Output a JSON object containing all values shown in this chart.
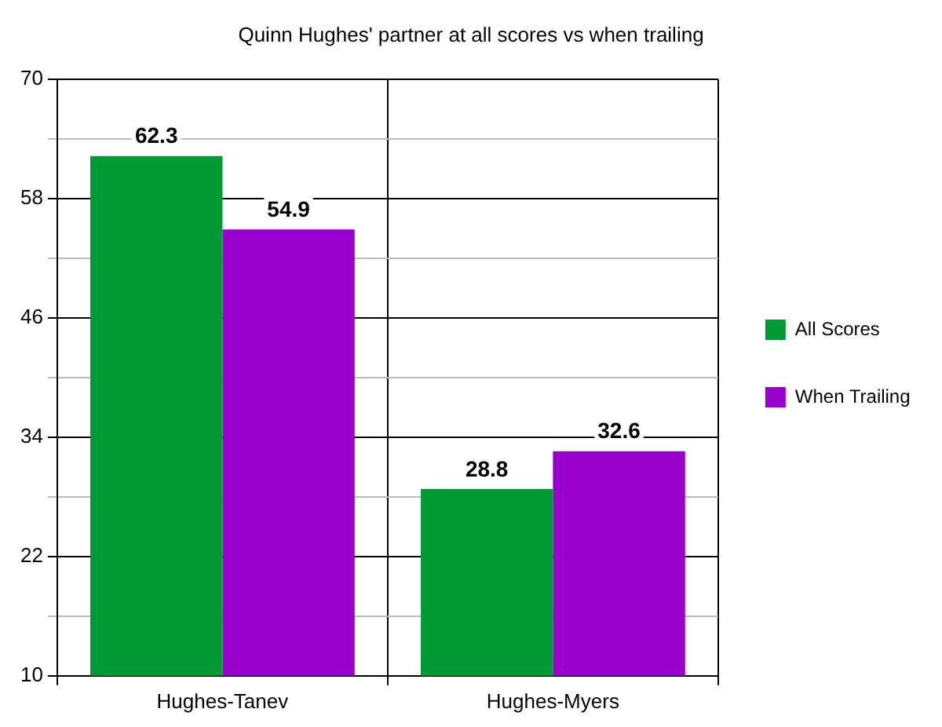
{
  "chart_data": {
    "type": "bar",
    "title": "Quinn Hughes' partner at all scores vs when trailing",
    "categories": [
      "Hughes-Tanev",
      "Hughes-Myers"
    ],
    "series": [
      {
        "name": "All Scores",
        "color": "#009933",
        "values": [
          62.3,
          28.8
        ]
      },
      {
        "name": "When Trailing",
        "color": "#9900cc",
        "values": [
          54.9,
          32.6
        ]
      }
    ],
    "ylim": [
      10,
      70
    ],
    "yticks": [
      10,
      {
        "value": 16,
        "label": null
      },
      22,
      {
        "value": 28,
        "label": null
      },
      34,
      {
        "value": 40,
        "label": null
      },
      46,
      {
        "value": 52,
        "label": null
      },
      58,
      {
        "value": 64,
        "label": null
      },
      70
    ],
    "grid": true,
    "legend": "right",
    "data_labels": true
  }
}
